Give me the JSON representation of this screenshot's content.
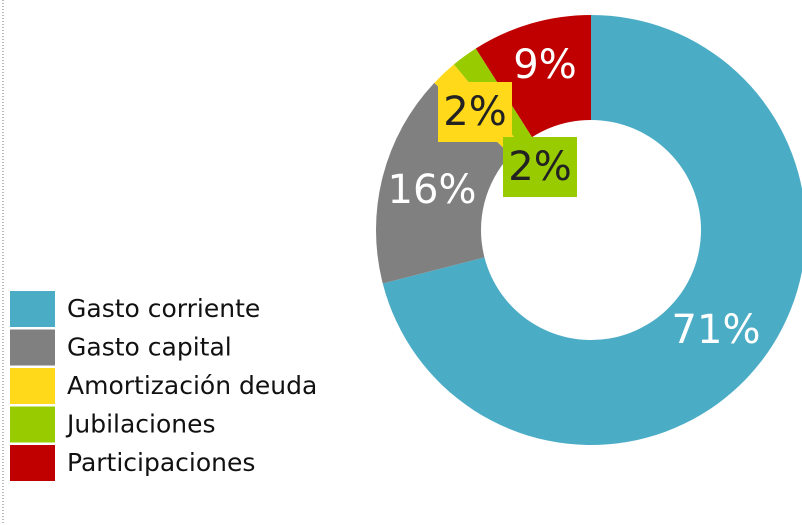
{
  "chart_data": {
    "type": "donut",
    "categories": [
      "Gasto corriente",
      "Gasto capital",
      "Amortización deuda",
      "Jubilaciones",
      "Participaciones"
    ],
    "values": [
      71,
      16,
      2,
      2,
      9
    ],
    "value_labels": [
      "71%",
      "16%",
      "2%",
      "2%",
      "9%"
    ],
    "colors": [
      "#4bacc6",
      "#808080",
      "#ffd91a",
      "#99cc00",
      "#c00000"
    ],
    "legend": "bottom-left"
  }
}
